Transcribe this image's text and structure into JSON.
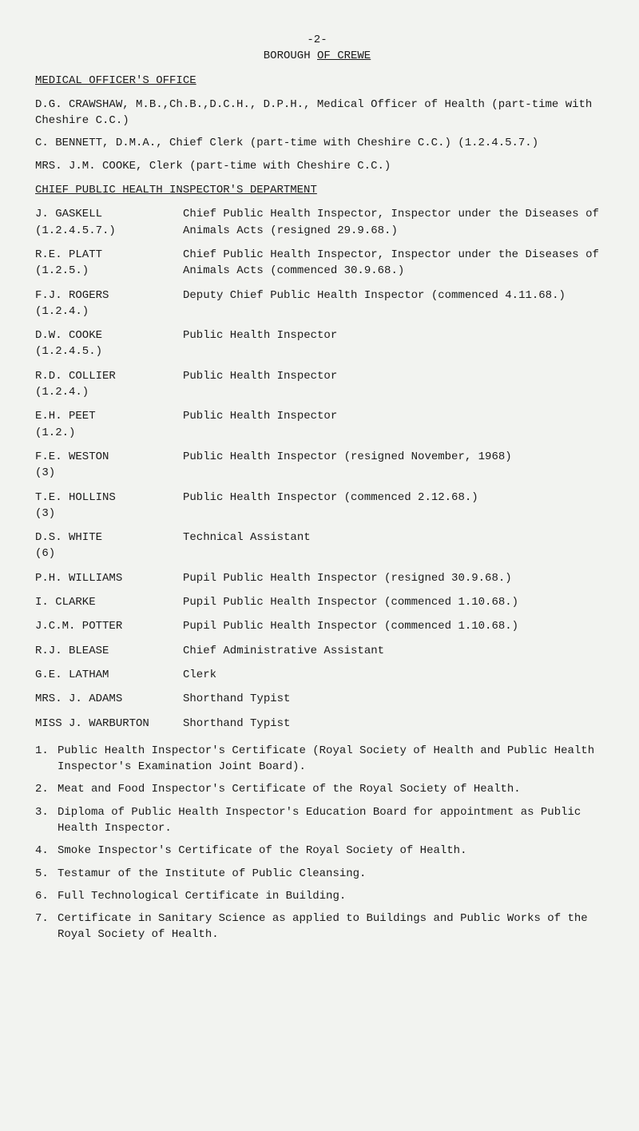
{
  "page_number": "-2-",
  "title_prefix": "BOROUGH ",
  "title_underlined": "OF CREWE",
  "section_medical": "MEDICAL OFFICER'S OFFICE",
  "medical": {
    "crawshaw": "D.G. CRAWSHAW, M.B.,Ch.B.,D.C.H., D.P.H., Medical Officer of Health (part-time with Cheshire C.C.)",
    "bennett": "C. BENNETT, D.M.A., Chief Clerk (part-time with Cheshire C.C.) (1.2.4.5.7.)",
    "cooke": "MRS. J.M. COOKE, Clerk (part-time with Cheshire C.C.)"
  },
  "section_chief": "CHIEF PUBLIC HEALTH INSPECTOR'S DEPARTMENT",
  "staff": {
    "gaskell_name": "J. GASKELL\n(1.2.4.5.7.)",
    "gaskell_role": "Chief Public Health Inspector, Inspector under the Diseases of Animals Acts (resigned 29.9.68.)",
    "platt_name": "R.E. PLATT\n(1.2.5.)",
    "platt_role": "Chief Public Health Inspector, Inspector under the Diseases of Animals Acts (commenced 30.9.68.)",
    "rogers_name": "F.J. ROGERS\n(1.2.4.)",
    "rogers_role": "Deputy Chief Public Health Inspector (commenced 4.11.68.)",
    "cooke_name": "D.W. COOKE\n(1.2.4.5.)",
    "cooke_role": "Public Health Inspector",
    "collier_name": "R.D. COLLIER\n(1.2.4.)",
    "collier_role": "Public Health Inspector",
    "peet_name": "E.H. PEET\n(1.2.)",
    "peet_role": "Public Health Inspector",
    "weston_name": "F.E. WESTON\n(3)",
    "weston_role": "Public Health Inspector (resigned November, 1968)",
    "hollins_name": "T.E. HOLLINS\n(3)",
    "hollins_role": "Public Health Inspector (commenced 2.12.68.)",
    "white_name": "D.S. WHITE\n(6)",
    "white_role": "Technical Assistant",
    "williams_name": "P.H. WILLIAMS",
    "williams_role": "Pupil Public Health Inspector (resigned 30.9.68.)",
    "clarke_name": "I. CLARKE",
    "clarke_role": "Pupil Public Health Inspector (commenced 1.10.68.)",
    "potter_name": "J.C.M. POTTER",
    "potter_role": "Pupil Public Health Inspector (commenced 1.10.68.)",
    "blease_name": "R.J. BLEASE",
    "blease_role": "Chief Administrative Assistant",
    "latham_name": "G.E. LATHAM",
    "latham_role": "Clerk",
    "adams_name": "MRS. J. ADAMS",
    "adams_role": "Shorthand Typist",
    "warburton_name": "MISS J. WARBURTON",
    "warburton_role": "Shorthand Typist"
  },
  "notes": {
    "n1_num": "1.",
    "n1_text": "Public Health Inspector's Certificate (Royal Society of Health and Public Health Inspector's Examination Joint Board).",
    "n2_num": "2.",
    "n2_text": "Meat and Food Inspector's Certificate of the Royal Society of Health.",
    "n3_num": "3.",
    "n3_text": "Diploma of Public Health Inspector's Education Board for appointment as Public Health Inspector.",
    "n4_num": "4.",
    "n4_text": "Smoke Inspector's Certificate of the Royal Society of Health.",
    "n5_num": "5.",
    "n5_text": "Testamur of the Institute of Public Cleansing.",
    "n6_num": "6.",
    "n6_text": "Full Technological Certificate in Building.",
    "n7_num": "7.",
    "n7_text": "Certificate in Sanitary Science as applied to Buildings and Public Works of the Royal Society of Health."
  }
}
